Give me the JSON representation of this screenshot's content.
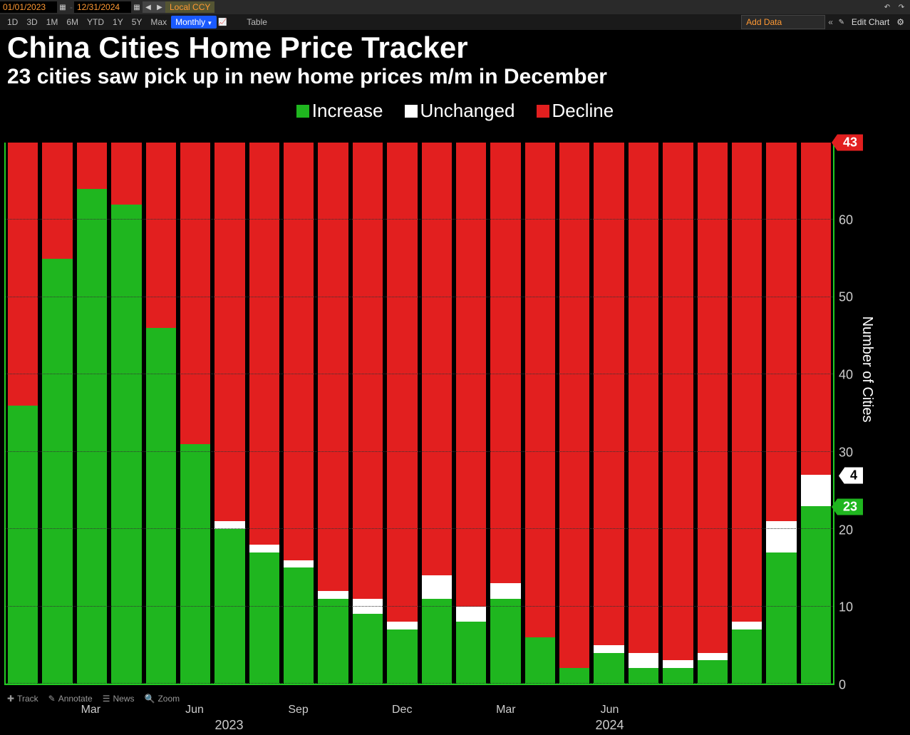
{
  "toolbar": {
    "date_from": "01/01/2023",
    "date_to": "12/31/2024",
    "local_label": "Local CCY"
  },
  "ranges": {
    "items": [
      "1D",
      "3D",
      "1M",
      "6M",
      "YTD",
      "1Y",
      "5Y",
      "Max"
    ],
    "freq": "Monthly",
    "table": "Table"
  },
  "right_tools": {
    "add_data": "Add Data",
    "edit_chart": "Edit Chart"
  },
  "title": {
    "main": "China Cities Home Price Tracker",
    "sub": "23 cities saw pick up in new home prices m/m in December",
    "title_fontsize": 42,
    "subtitle_fontsize": 30
  },
  "legend": {
    "items": [
      {
        "label": "Increase",
        "color": "#1fb61f"
      },
      {
        "label": "Unchanged",
        "color": "#ffffff"
      },
      {
        "label": "Decline",
        "color": "#e21f1f"
      }
    ],
    "fontsize": 26
  },
  "chart": {
    "type": "stacked-bar",
    "total": 70,
    "ylim": [
      0,
      70
    ],
    "ytick_step": 10,
    "yticks": [
      0,
      10,
      20,
      30,
      40,
      50,
      60
    ],
    "ytick_fontsize": 18,
    "ylabel": "Number of Cities",
    "ylabel_fontsize": 20,
    "background_color": "#000000",
    "grid_color": "#333333",
    "axis_color": "#22cc22",
    "colors": {
      "increase": "#1fb61f",
      "unchanged": "#ffffff",
      "decline": "#e21f1f"
    },
    "months": [
      {
        "m": "Jan",
        "y": 2023,
        "increase": 36,
        "unchanged": 0,
        "decline": 34
      },
      {
        "m": "Feb",
        "y": 2023,
        "increase": 55,
        "unchanged": 0,
        "decline": 15
      },
      {
        "m": "Mar",
        "y": 2023,
        "increase": 64,
        "unchanged": 0,
        "decline": 6
      },
      {
        "m": "Apr",
        "y": 2023,
        "increase": 62,
        "unchanged": 0,
        "decline": 8
      },
      {
        "m": "May",
        "y": 2023,
        "increase": 46,
        "unchanged": 0,
        "decline": 24
      },
      {
        "m": "Jun",
        "y": 2023,
        "increase": 31,
        "unchanged": 0,
        "decline": 39
      },
      {
        "m": "Jul",
        "y": 2023,
        "increase": 20,
        "unchanged": 1,
        "decline": 49
      },
      {
        "m": "Aug",
        "y": 2023,
        "increase": 17,
        "unchanged": 1,
        "decline": 52
      },
      {
        "m": "Sep",
        "y": 2023,
        "increase": 15,
        "unchanged": 1,
        "decline": 54
      },
      {
        "m": "Oct",
        "y": 2023,
        "increase": 11,
        "unchanged": 1,
        "decline": 58
      },
      {
        "m": "Nov",
        "y": 2023,
        "increase": 9,
        "unchanged": 2,
        "decline": 59
      },
      {
        "m": "Dec",
        "y": 2023,
        "increase": 7,
        "unchanged": 1,
        "decline": 62
      },
      {
        "m": "Jan",
        "y": 2024,
        "increase": 11,
        "unchanged": 3,
        "decline": 56
      },
      {
        "m": "Feb",
        "y": 2024,
        "increase": 8,
        "unchanged": 2,
        "decline": 60
      },
      {
        "m": "Mar",
        "y": 2024,
        "increase": 11,
        "unchanged": 2,
        "decline": 57
      },
      {
        "m": "Apr",
        "y": 2024,
        "increase": 6,
        "unchanged": 0,
        "decline": 64
      },
      {
        "m": "May",
        "y": 2024,
        "increase": 2,
        "unchanged": 0,
        "decline": 68
      },
      {
        "m": "Jun",
        "y": 2024,
        "increase": 4,
        "unchanged": 1,
        "decline": 65
      },
      {
        "m": "Jul",
        "y": 2024,
        "increase": 2,
        "unchanged": 2,
        "decline": 66
      },
      {
        "m": "Aug",
        "y": 2024,
        "increase": 2,
        "unchanged": 1,
        "decline": 67
      },
      {
        "m": "Sep",
        "y": 2024,
        "increase": 3,
        "unchanged": 1,
        "decline": 66
      },
      {
        "m": "Oct",
        "y": 2024,
        "increase": 7,
        "unchanged": 1,
        "decline": 62
      },
      {
        "m": "Nov",
        "y": 2024,
        "increase": 17,
        "unchanged": 4,
        "decline": 49
      },
      {
        "m": "Dec",
        "y": 2024,
        "increase": 23,
        "unchanged": 4,
        "decline": 43
      }
    ],
    "flags": [
      {
        "value": 43,
        "color": "#e21f1f",
        "text_color": "#ffffff",
        "stack_pos": 70
      },
      {
        "value": 4,
        "color": "#ffffff",
        "text_color": "#000000",
        "stack_pos": 27
      },
      {
        "value": 23,
        "color": "#1fb61f",
        "text_color": "#ffffff",
        "stack_pos": 23
      }
    ],
    "x_month_ticks": [
      "Mar",
      "Jun",
      "Sep",
      "Dec",
      "Mar",
      "Jun"
    ],
    "x_month_tick_idx": [
      2,
      5,
      8,
      11,
      14,
      17
    ],
    "x_years": [
      {
        "label": "2023",
        "center_idx": 6
      },
      {
        "label": "2024",
        "center_idx": 17
      }
    ]
  },
  "bottom_tools": {
    "track": "Track",
    "annotate": "Annotate",
    "news": "News",
    "zoom": "Zoom"
  }
}
